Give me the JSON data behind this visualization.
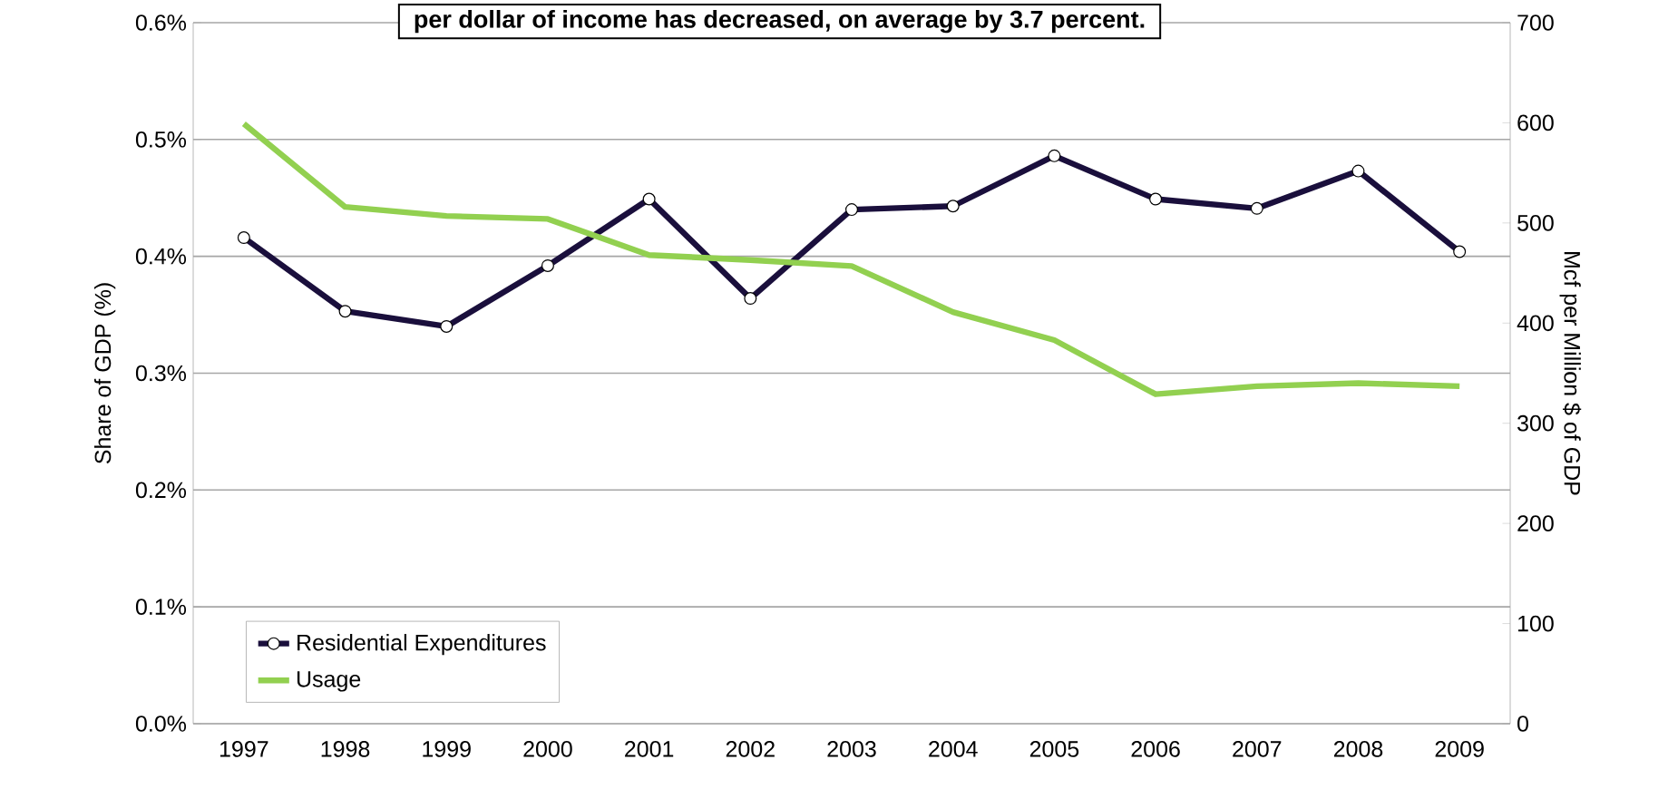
{
  "chart_data": {
    "type": "line",
    "annotations": [
      "per dollar of income has decreased, on average by 3.7 percent."
    ],
    "categories": [
      "1997",
      "1998",
      "1999",
      "2000",
      "2001",
      "2002",
      "2003",
      "2004",
      "2005",
      "2006",
      "2007",
      "2008",
      "2009"
    ],
    "series": [
      {
        "name": "Residential Expenditures",
        "color": "#1a0f3c",
        "marker": "circle",
        "values": [
          0.416,
          0.353,
          0.34,
          0.392,
          0.449,
          0.364,
          0.44,
          0.443,
          0.486,
          0.449,
          0.441,
          0.473,
          0.404
        ]
      },
      {
        "name": "Usage",
        "color": "#92d050",
        "marker": "none",
        "axis": "y2",
        "values": [
          599,
          516,
          507,
          504,
          468,
          463,
          457,
          411,
          383,
          329,
          337,
          340,
          337
        ]
      }
    ],
    "ylabel": "Share of GDP (%)",
    "y2label": "Mcf per Million $ of GDP",
    "ylim": [
      0,
      0.6
    ],
    "yticks": [
      {
        "value": 0,
        "label": "0.0%"
      },
      {
        "value": 0.1,
        "label": "0.1%"
      },
      {
        "value": 0.2,
        "label": "0.2%"
      },
      {
        "value": 0.3,
        "label": "0.3%"
      },
      {
        "value": 0.4,
        "label": "0.4%"
      },
      {
        "value": 0.5,
        "label": "0.5%"
      },
      {
        "value": 0.6,
        "label": "0.6%"
      }
    ],
    "y2lim": [
      0,
      700
    ],
    "y2ticks": [
      0,
      100,
      200,
      300,
      400,
      500,
      600,
      700
    ],
    "grid": "y",
    "legend": "bottom left"
  }
}
